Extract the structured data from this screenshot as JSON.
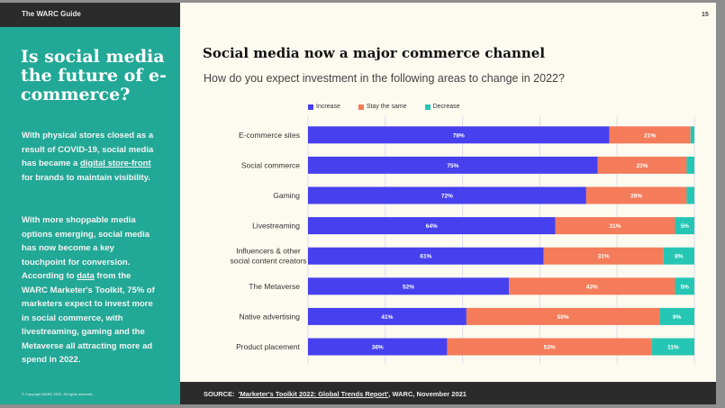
{
  "sidebar": {
    "guide_label": "The WARC Guide",
    "headline": "Is social media the future of e-commerce?",
    "para1": {
      "before": "With physical stores closed as a result of COVID-19, social media has became a ",
      "link": "digital store-front",
      "after": " for brands to maintain visibility."
    },
    "para2": {
      "before": "With more shoppable media options emerging, social media has now become a key touchpoint for conversion. According to ",
      "link": "data",
      "after": " from the WARC Marketer's Toolkit, 75% of marketers expect to invest more in social commerce, with livestreaming, gaming and the Metaverse all attracting more ad spend in 2022."
    },
    "copyright": "© Copyright WARC 2022. All rights reserved."
  },
  "page_number": "15",
  "footer": {
    "source_label": "SOURCE:",
    "source_link": "'Marketer's Toolkit 2022: Global Trends Report'",
    "source_rest": ", WARC, November 2021"
  },
  "chart_data": {
    "type": "bar",
    "orientation": "horizontal",
    "stacked": true,
    "title": "Social media now a major commerce channel",
    "subtitle": "How do you expect investment in the following areas to change in 2022?",
    "xlabel": "",
    "ylabel": "",
    "xlim": [
      0,
      100
    ],
    "grid": true,
    "legend_position": "top-left",
    "categories": [
      "E-commerce sites",
      "Social commerce",
      "Gaming",
      "Livestreaming",
      "Influencers & other social content creators",
      "The Metaverse",
      "Native advertising",
      "Product placement"
    ],
    "series": [
      {
        "name": "Increase",
        "color": "#4640ee",
        "values": [
          78,
          75,
          72,
          64,
          61,
          52,
          41,
          36
        ]
      },
      {
        "name": "Stay the same",
        "color": "#f47c5a",
        "values": [
          21,
          23,
          26,
          31,
          31,
          43,
          50,
          53
        ]
      },
      {
        "name": "Decrease",
        "color": "#26c6b4",
        "values": [
          1,
          2,
          2,
          5,
          8,
          5,
          9,
          11
        ]
      }
    ],
    "label_min_value": 5
  }
}
